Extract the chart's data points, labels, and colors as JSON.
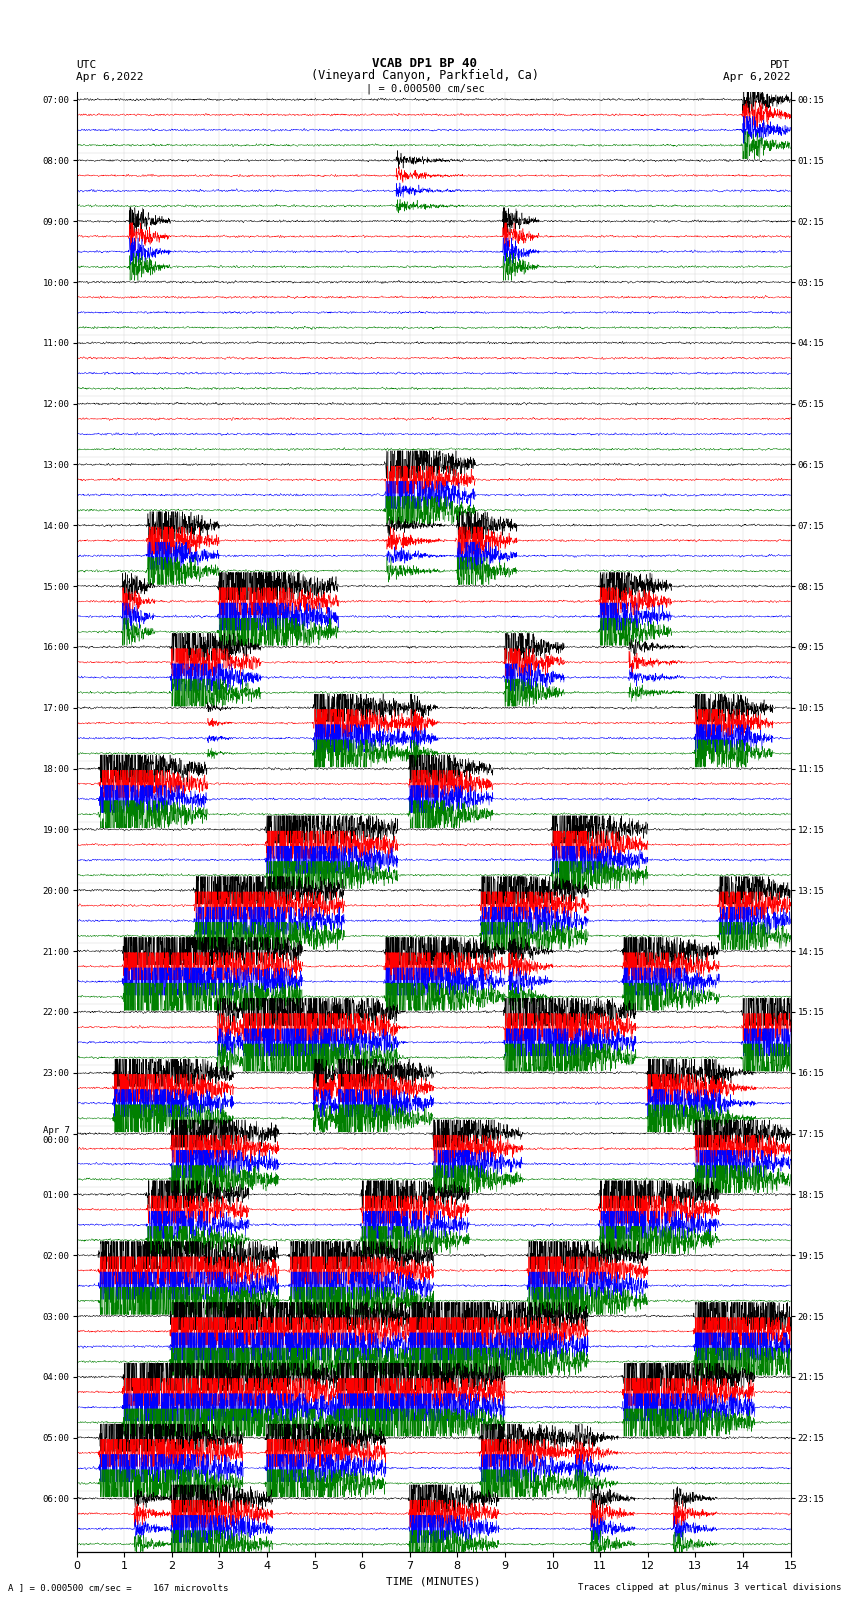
{
  "title_line1": "VCAB DP1 BP 40",
  "title_line2": "(Vineyard Canyon, Parkfield, Ca)",
  "scale_label": "| = 0.000500 cm/sec",
  "left_header": "UTC",
  "right_header": "PDT",
  "left_date": "Apr 6,2022",
  "right_date": "Apr 6,2022",
  "footer_left": "A ] = 0.000500 cm/sec =    167 microvolts",
  "footer_right": "Traces clipped at plus/minus 3 vertical divisions",
  "xlabel": "TIME (MINUTES)",
  "xticks": [
    0,
    1,
    2,
    3,
    4,
    5,
    6,
    7,
    8,
    9,
    10,
    11,
    12,
    13,
    14,
    15
  ],
  "xlim": [
    0,
    15
  ],
  "colors": [
    "black",
    "red",
    "blue",
    "green"
  ],
  "utc_labels": [
    "07:00",
    "08:00",
    "09:00",
    "10:00",
    "11:00",
    "12:00",
    "13:00",
    "14:00",
    "15:00",
    "16:00",
    "17:00",
    "18:00",
    "19:00",
    "20:00",
    "21:00",
    "22:00",
    "23:00",
    "Apr 7\n00:00",
    "01:00",
    "02:00",
    "03:00",
    "04:00",
    "05:00",
    "06:00"
  ],
  "pdt_labels": [
    "00:15",
    "01:15",
    "02:15",
    "03:15",
    "04:15",
    "05:15",
    "06:15",
    "07:15",
    "08:15",
    "09:15",
    "10:15",
    "11:15",
    "12:15",
    "13:15",
    "14:15",
    "15:15",
    "16:15",
    "17:15",
    "18:15",
    "19:15",
    "20:15",
    "21:15",
    "22:15",
    "23:15"
  ],
  "num_rows": 24,
  "traces_per_row": 4,
  "background_color": "white",
  "trace_amplitude_base": 0.3,
  "noise_base": 0.06,
  "seed": 42,
  "n_points": 3000,
  "event_amplitude_scale": 2.5
}
